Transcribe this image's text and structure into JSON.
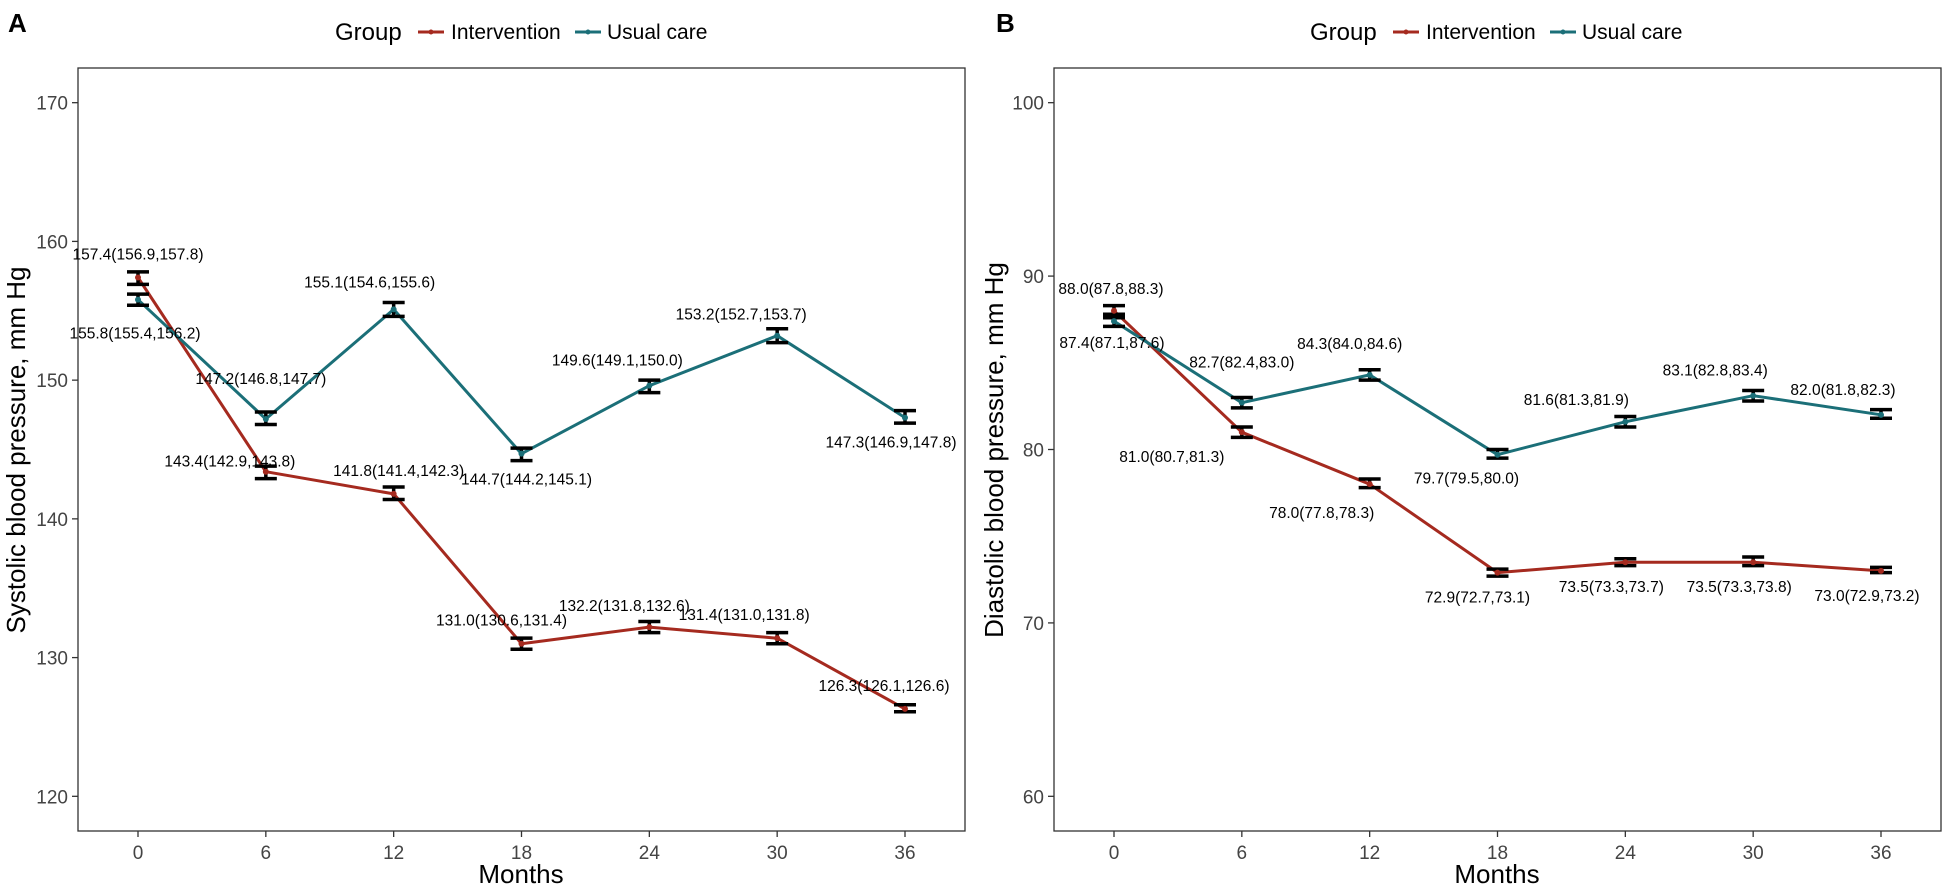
{
  "chart_data": [
    {
      "panel": "A",
      "type": "line",
      "legend_title": "Group",
      "legend_position": "top",
      "xlabel": "Months",
      "ylabel": "Systolic blood pressure, mm Hg",
      "x": [
        0,
        6,
        12,
        18,
        24,
        30,
        36
      ],
      "xticks": [
        "0",
        "6",
        "12",
        "18",
        "24",
        "30",
        "36"
      ],
      "yticks": [
        120,
        130,
        140,
        150,
        160,
        170
      ],
      "ylim": [
        117.5,
        172.5
      ],
      "grid": false,
      "series": [
        {
          "name": "Intervention",
          "color": "#a52a1f",
          "values": [
            157.4,
            143.4,
            141.8,
            131.0,
            132.2,
            131.4,
            126.3
          ],
          "ci_low": [
            156.9,
            142.9,
            141.4,
            130.6,
            131.8,
            131.0,
            126.1
          ],
          "ci_high": [
            157.8,
            143.8,
            142.3,
            131.4,
            132.6,
            131.8,
            126.6
          ],
          "labels": [
            "157.4(156.9,157.8)",
            "143.4(142.9,143.8)",
            "141.8(141.4,142.3)",
            "131.0(130.6,131.4)",
            "132.2(131.8,132.6)",
            "131.4(131.0,131.8)",
            "126.3(126.1,126.6)"
          ]
        },
        {
          "name": "Usual care",
          "color": "#1b6f78",
          "values": [
            155.8,
            147.2,
            155.1,
            144.7,
            149.6,
            153.2,
            147.3
          ],
          "ci_low": [
            155.4,
            146.8,
            154.6,
            144.2,
            149.1,
            152.7,
            146.9
          ],
          "ci_high": [
            156.2,
            147.7,
            155.6,
            145.1,
            150.0,
            153.7,
            147.8
          ],
          "labels": [
            "155.8(155.4,156.2)",
            "147.2(146.8,147.7)",
            "155.1(154.6,155.6)",
            "144.7(144.2,145.1)",
            "149.6(149.1,150.0)",
            "153.2(152.7,153.7)",
            "147.3(146.9,147.8)"
          ]
        }
      ]
    },
    {
      "panel": "B",
      "type": "line",
      "legend_title": "Group",
      "legend_position": "top",
      "xlabel": "Months",
      "ylabel": "Diastolic blood pressure, mm Hg",
      "x": [
        0,
        6,
        12,
        18,
        24,
        30,
        36
      ],
      "xticks": [
        "0",
        "6",
        "12",
        "18",
        "24",
        "30",
        "36"
      ],
      "yticks": [
        60,
        70,
        80,
        90,
        100
      ],
      "ylim": [
        58,
        102
      ],
      "grid": false,
      "series": [
        {
          "name": "Intervention",
          "color": "#a52a1f",
          "values": [
            88.0,
            81.0,
            78.0,
            72.9,
            73.5,
            73.5,
            73.0
          ],
          "ci_low": [
            87.8,
            80.7,
            77.8,
            72.7,
            73.3,
            73.3,
            72.9
          ],
          "ci_high": [
            88.3,
            81.3,
            78.3,
            73.1,
            73.7,
            73.8,
            73.2
          ],
          "labels": [
            "88.0(87.8,88.3)",
            "81.0(80.7,81.3)",
            "78.0(77.8,78.3)",
            "72.9(72.7,73.1)",
            "73.5(73.3,73.7)",
            "73.5(73.3,73.8)",
            "73.0(72.9,73.2)"
          ]
        },
        {
          "name": "Usual care",
          "color": "#1b6f78",
          "values": [
            87.4,
            82.7,
            84.3,
            79.7,
            81.6,
            83.1,
            82.0
          ],
          "ci_low": [
            87.1,
            82.4,
            84.0,
            79.5,
            81.3,
            82.8,
            81.8
          ],
          "ci_high": [
            87.6,
            83.0,
            84.6,
            80.0,
            81.9,
            83.4,
            82.3
          ],
          "labels": [
            "87.4(87.1,87.6)",
            "82.7(82.4,83.0)",
            "84.3(84.0,84.6)",
            "79.7(79.5,80.0)",
            "81.6(81.3,81.9)",
            "83.1(82.8,83.4)",
            "82.0(81.8,82.3)"
          ]
        }
      ]
    }
  ]
}
